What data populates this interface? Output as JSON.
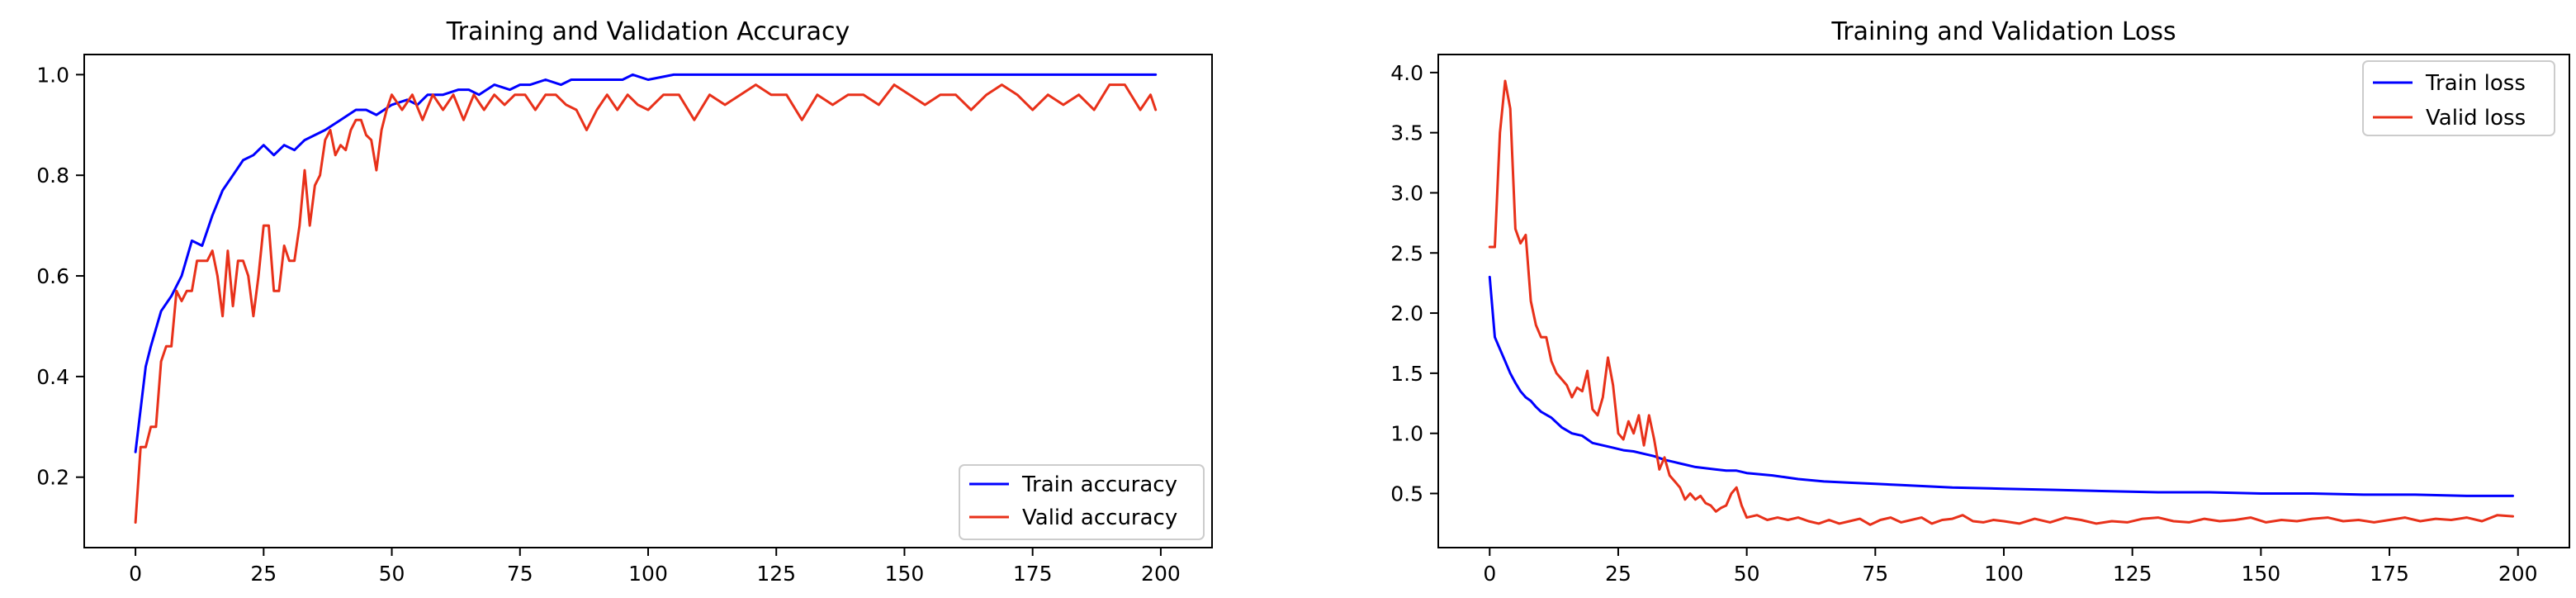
{
  "chart_data": [
    {
      "type": "line",
      "title": "Training and Validation Accuracy",
      "xlabel": "",
      "ylabel": "",
      "xlim": [
        -10,
        210
      ],
      "ylim": [
        0.06,
        1.04
      ],
      "xticks": [
        0,
        25,
        50,
        75,
        100,
        125,
        150,
        175,
        200
      ],
      "yticks": [
        0.2,
        0.4,
        0.6,
        0.8,
        1.0
      ],
      "ytick_labels": [
        "0.2",
        "0.4",
        "0.6",
        "0.8",
        "1.0"
      ],
      "grid": false,
      "legend": "lower-right",
      "series": [
        {
          "name": "Train accuracy",
          "color": "#0000ff",
          "x": [
            0,
            2,
            3,
            5,
            7,
            9,
            11,
            13,
            15,
            17,
            19,
            21,
            23,
            25,
            27,
            29,
            31,
            33,
            35,
            37,
            40,
            43,
            45,
            47,
            50,
            53,
            55,
            57,
            60,
            63,
            65,
            67,
            70,
            73,
            75,
            77,
            80,
            83,
            85,
            87,
            90,
            93,
            95,
            97,
            100,
            105,
            110,
            115,
            120,
            125,
            130,
            140,
            150,
            160,
            170,
            180,
            190,
            199
          ],
          "y": [
            0.25,
            0.42,
            0.46,
            0.53,
            0.56,
            0.6,
            0.67,
            0.66,
            0.72,
            0.77,
            0.8,
            0.83,
            0.84,
            0.86,
            0.84,
            0.86,
            0.85,
            0.87,
            0.88,
            0.89,
            0.91,
            0.93,
            0.93,
            0.92,
            0.94,
            0.95,
            0.94,
            0.96,
            0.96,
            0.97,
            0.97,
            0.96,
            0.98,
            0.97,
            0.98,
            0.98,
            0.99,
            0.98,
            0.99,
            0.99,
            0.99,
            0.99,
            0.99,
            1.0,
            0.99,
            1.0,
            1.0,
            1.0,
            1.0,
            1.0,
            1.0,
            1.0,
            1.0,
            1.0,
            1.0,
            1.0,
            1.0,
            1.0
          ]
        },
        {
          "name": "Valid accuracy",
          "color": "#e8311a",
          "x": [
            0,
            1,
            2,
            3,
            4,
            5,
            6,
            7,
            8,
            9,
            10,
            11,
            12,
            13,
            14,
            15,
            16,
            17,
            18,
            19,
            20,
            21,
            22,
            23,
            24,
            25,
            26,
            27,
            28,
            29,
            30,
            31,
            32,
            33,
            34,
            35,
            36,
            37,
            38,
            39,
            40,
            41,
            42,
            43,
            44,
            45,
            46,
            47,
            48,
            49,
            50,
            52,
            54,
            56,
            58,
            60,
            62,
            64,
            66,
            68,
            70,
            72,
            74,
            76,
            78,
            80,
            82,
            84,
            86,
            88,
            90,
            92,
            94,
            96,
            98,
            100,
            103,
            106,
            109,
            112,
            115,
            118,
            121,
            124,
            127,
            130,
            133,
            136,
            139,
            142,
            145,
            148,
            151,
            154,
            157,
            160,
            163,
            166,
            169,
            172,
            175,
            178,
            181,
            184,
            187,
            190,
            193,
            196,
            198,
            199
          ],
          "y": [
            0.11,
            0.26,
            0.26,
            0.3,
            0.3,
            0.43,
            0.46,
            0.46,
            0.57,
            0.55,
            0.57,
            0.57,
            0.63,
            0.63,
            0.63,
            0.65,
            0.6,
            0.52,
            0.65,
            0.54,
            0.63,
            0.63,
            0.6,
            0.52,
            0.6,
            0.7,
            0.7,
            0.57,
            0.57,
            0.66,
            0.63,
            0.63,
            0.7,
            0.81,
            0.7,
            0.78,
            0.8,
            0.87,
            0.89,
            0.84,
            0.86,
            0.85,
            0.89,
            0.91,
            0.91,
            0.88,
            0.87,
            0.81,
            0.89,
            0.93,
            0.96,
            0.93,
            0.96,
            0.91,
            0.96,
            0.93,
            0.96,
            0.91,
            0.96,
            0.93,
            0.96,
            0.94,
            0.96,
            0.96,
            0.93,
            0.96,
            0.96,
            0.94,
            0.93,
            0.89,
            0.93,
            0.96,
            0.93,
            0.96,
            0.94,
            0.93,
            0.96,
            0.96,
            0.91,
            0.96,
            0.94,
            0.96,
            0.98,
            0.96,
            0.96,
            0.91,
            0.96,
            0.94,
            0.96,
            0.96,
            0.94,
            0.98,
            0.96,
            0.94,
            0.96,
            0.96,
            0.93,
            0.96,
            0.98,
            0.96,
            0.93,
            0.96,
            0.94,
            0.96,
            0.93,
            0.98,
            0.98,
            0.93,
            0.96,
            0.93
          ]
        }
      ]
    },
    {
      "type": "line",
      "title": "Training and Validation Loss",
      "xlabel": "",
      "ylabel": "",
      "xlim": [
        -10,
        210
      ],
      "ylim": [
        0.05,
        4.15
      ],
      "xticks": [
        0,
        25,
        50,
        75,
        100,
        125,
        150,
        175,
        200
      ],
      "yticks": [
        0.5,
        1.0,
        1.5,
        2.0,
        2.5,
        3.0,
        3.5,
        4.0
      ],
      "ytick_labels": [
        "0.5",
        "1.0",
        "1.5",
        "2.0",
        "2.5",
        "3.0",
        "3.5",
        "4.0"
      ],
      "grid": false,
      "legend": "upper-right",
      "series": [
        {
          "name": "Train loss",
          "color": "#0000ff",
          "x": [
            0,
            1,
            2,
            3,
            4,
            5,
            6,
            7,
            8,
            9,
            10,
            12,
            14,
            16,
            18,
            20,
            22,
            24,
            26,
            28,
            30,
            32,
            34,
            36,
            38,
            40,
            42,
            44,
            46,
            48,
            50,
            55,
            60,
            65,
            70,
            75,
            80,
            85,
            90,
            100,
            110,
            120,
            130,
            140,
            150,
            160,
            170,
            180,
            190,
            199
          ],
          "y": [
            2.3,
            1.8,
            1.7,
            1.6,
            1.5,
            1.42,
            1.35,
            1.3,
            1.27,
            1.22,
            1.18,
            1.13,
            1.05,
            1.0,
            0.98,
            0.92,
            0.9,
            0.88,
            0.86,
            0.85,
            0.83,
            0.81,
            0.78,
            0.76,
            0.74,
            0.72,
            0.71,
            0.7,
            0.69,
            0.69,
            0.67,
            0.65,
            0.62,
            0.6,
            0.59,
            0.58,
            0.57,
            0.56,
            0.55,
            0.54,
            0.53,
            0.52,
            0.51,
            0.51,
            0.5,
            0.5,
            0.49,
            0.49,
            0.48,
            0.48
          ]
        },
        {
          "name": "Valid loss",
          "color": "#e8311a",
          "x": [
            0,
            1,
            2,
            3,
            4,
            5,
            6,
            7,
            8,
            9,
            10,
            11,
            12,
            13,
            14,
            15,
            16,
            17,
            18,
            19,
            20,
            21,
            22,
            23,
            24,
            25,
            26,
            27,
            28,
            29,
            30,
            31,
            32,
            33,
            34,
            35,
            36,
            37,
            38,
            39,
            40,
            41,
            42,
            43,
            44,
            45,
            46,
            47,
            48,
            49,
            50,
            52,
            54,
            56,
            58,
            60,
            62,
            64,
            66,
            68,
            70,
            72,
            74,
            76,
            78,
            80,
            82,
            84,
            86,
            88,
            90,
            92,
            94,
            96,
            98,
            100,
            103,
            106,
            109,
            112,
            115,
            118,
            121,
            124,
            127,
            130,
            133,
            136,
            139,
            142,
            145,
            148,
            151,
            154,
            157,
            160,
            163,
            166,
            169,
            172,
            175,
            178,
            181,
            184,
            187,
            190,
            193,
            196,
            199
          ],
          "y": [
            2.55,
            2.55,
            3.5,
            3.93,
            3.7,
            2.7,
            2.58,
            2.65,
            2.1,
            1.9,
            1.8,
            1.8,
            1.6,
            1.5,
            1.45,
            1.4,
            1.3,
            1.38,
            1.35,
            1.52,
            1.2,
            1.15,
            1.3,
            1.63,
            1.4,
            1.0,
            0.95,
            1.1,
            1.0,
            1.15,
            0.9,
            1.15,
            0.95,
            0.7,
            0.8,
            0.65,
            0.6,
            0.55,
            0.45,
            0.5,
            0.45,
            0.48,
            0.42,
            0.4,
            0.35,
            0.38,
            0.4,
            0.5,
            0.55,
            0.4,
            0.3,
            0.32,
            0.28,
            0.3,
            0.28,
            0.3,
            0.27,
            0.25,
            0.28,
            0.25,
            0.27,
            0.29,
            0.24,
            0.28,
            0.3,
            0.26,
            0.28,
            0.3,
            0.25,
            0.28,
            0.29,
            0.32,
            0.27,
            0.26,
            0.28,
            0.27,
            0.25,
            0.29,
            0.26,
            0.3,
            0.28,
            0.25,
            0.27,
            0.26,
            0.29,
            0.3,
            0.27,
            0.26,
            0.29,
            0.27,
            0.28,
            0.3,
            0.26,
            0.28,
            0.27,
            0.29,
            0.3,
            0.27,
            0.28,
            0.26,
            0.28,
            0.3,
            0.27,
            0.29,
            0.28,
            0.3,
            0.27,
            0.32,
            0.31
          ]
        }
      ]
    }
  ]
}
